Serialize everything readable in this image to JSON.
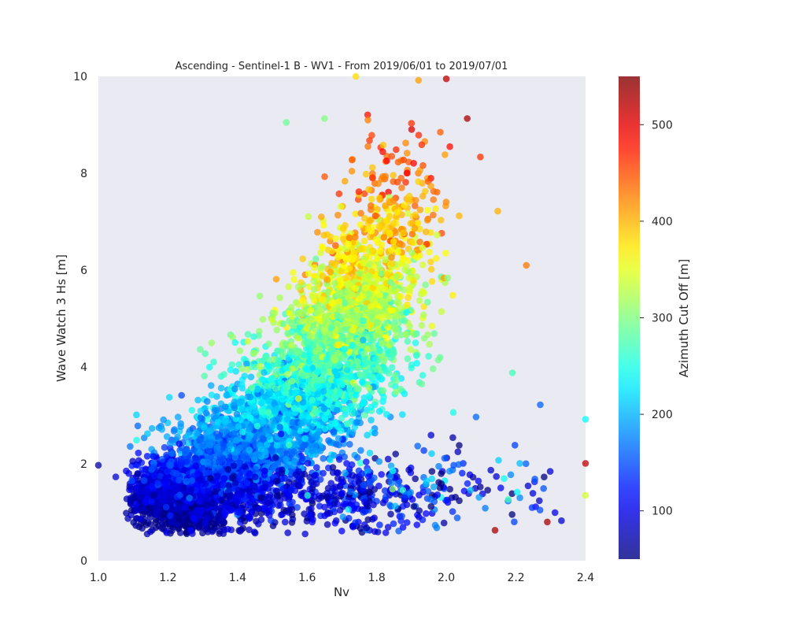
{
  "chart_data": {
    "type": "scatter",
    "title": "Ascending - Sentinel-1 B - WV1 - From 2019/06/01 to 2019/07/01",
    "xlabel": "Nv",
    "ylabel": "Wave Watch 3 Hs [m]",
    "xlim": [
      1.0,
      2.4
    ],
    "ylim": [
      0,
      10
    ],
    "xticks": [
      "1.0",
      "1.2",
      "1.4",
      "1.6",
      "1.8",
      "2.0",
      "2.2",
      "2.4"
    ],
    "yticks": [
      "0",
      "2",
      "4",
      "6",
      "8",
      "10"
    ],
    "grid": false,
    "colorbar": {
      "label": "Azimuth Cut Off [m]",
      "range": [
        50,
        550
      ],
      "ticks": [
        "100",
        "200",
        "300",
        "400",
        "500"
      ],
      "colormap": "jet"
    },
    "colors": {
      "plot_background": "#eaeaf2",
      "point_alpha": 0.75
    },
    "notable_points": [
      {
        "x": 1.0,
        "y": 1.97,
        "c": 70
      },
      {
        "x": 1.05,
        "y": 1.73,
        "c": 90
      },
      {
        "x": 1.11,
        "y": 2.49,
        "c": 250
      },
      {
        "x": 1.54,
        "y": 9.05,
        "c": 290
      },
      {
        "x": 1.65,
        "y": 9.13,
        "c": 300
      },
      {
        "x": 1.74,
        "y": 10.0,
        "c": 380
      },
      {
        "x": 1.92,
        "y": 9.92,
        "c": 410
      },
      {
        "x": 2.0,
        "y": 9.95,
        "c": 520
      },
      {
        "x": 2.06,
        "y": 9.13,
        "c": 530
      },
      {
        "x": 2.23,
        "y": 6.1,
        "c": 430
      },
      {
        "x": 2.27,
        "y": 3.22,
        "c": 160
      },
      {
        "x": 2.4,
        "y": 2.92,
        "c": 240
      },
      {
        "x": 2.4,
        "y": 2.01,
        "c": 520
      },
      {
        "x": 2.4,
        "y": 1.35,
        "c": 340
      },
      {
        "x": 2.29,
        "y": 0.8,
        "c": 530
      },
      {
        "x": 2.14,
        "y": 0.63,
        "c": 530
      },
      {
        "x": 1.27,
        "y": 0.56,
        "c": 90
      },
      {
        "x": 1.15,
        "y": 0.6,
        "c": 80
      },
      {
        "x": 2.01,
        "y": 8.55,
        "c": 480
      },
      {
        "x": 2.19,
        "y": 3.88,
        "c": 270
      }
    ],
    "density_clusters": [
      {
        "cx": 1.24,
        "cy": 1.35,
        "sx": 0.07,
        "sy": 0.38,
        "n": 1500,
        "c_base": 85,
        "c_slope": 20,
        "c_noise": 15
      },
      {
        "cx": 1.38,
        "cy": 2.1,
        "sx": 0.09,
        "sy": 0.55,
        "n": 1100,
        "c_base": 150,
        "c_slope": 25,
        "c_noise": 22
      },
      {
        "cx": 1.55,
        "cy": 3.1,
        "sx": 0.09,
        "sy": 0.65,
        "n": 1000,
        "c_base": 215,
        "c_slope": 20,
        "c_noise": 28
      },
      {
        "cx": 1.68,
        "cy": 4.2,
        "sx": 0.09,
        "sy": 0.7,
        "n": 900,
        "c_base": 280,
        "c_slope": 22,
        "c_noise": 30
      },
      {
        "cx": 1.76,
        "cy": 5.4,
        "sx": 0.08,
        "sy": 0.7,
        "n": 700,
        "c_base": 335,
        "c_slope": 22,
        "c_noise": 30
      },
      {
        "cx": 1.84,
        "cy": 6.8,
        "sx": 0.08,
        "sy": 0.9,
        "n": 320,
        "c_base": 385,
        "c_slope": 20,
        "c_noise": 30
      },
      {
        "cx": 1.62,
        "cy": 1.3,
        "sx": 0.18,
        "sy": 0.35,
        "n": 380,
        "c_base": 95,
        "c_slope": 0,
        "c_noise": 25
      },
      {
        "cx": 1.95,
        "cy": 1.5,
        "sx": 0.17,
        "sy": 0.45,
        "n": 160,
        "c_base": 140,
        "c_slope": 0,
        "c_noise": 60
      }
    ]
  }
}
